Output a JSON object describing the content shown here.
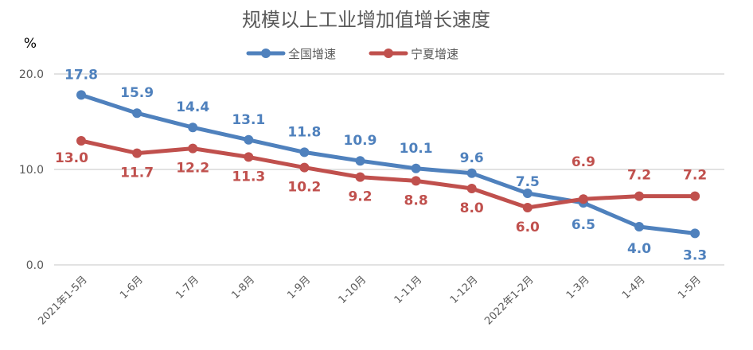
{
  "chart_data": {
    "type": "line",
    "title": "规模以上工业增加值增长速度",
    "ylabel": "%",
    "xlabel": "",
    "ylim": [
      0,
      20
    ],
    "yticks": [
      "0.0",
      "10.0",
      "20.0"
    ],
    "grid": true,
    "legend_position": "top-center",
    "categories": [
      "2021年1-5月",
      "1-6月",
      "1-7月",
      "1-8月",
      "1-9月",
      "1-10月",
      "1-11月",
      "1-12月",
      "2022年1-2月",
      "1-3月",
      "1-4月",
      "1-5月"
    ],
    "series": [
      {
        "name": "全国增速",
        "color": "#4f81bd",
        "values": [
          17.8,
          15.9,
          14.4,
          13.1,
          11.8,
          10.9,
          10.1,
          9.6,
          7.5,
          6.5,
          4.0,
          3.3
        ],
        "labels": [
          "17.8",
          "15.9",
          "14.4",
          "13.1",
          "11.8",
          "10.9",
          "10.1",
          "9.6",
          "7.5",
          "6.5",
          "4.0",
          "3.3"
        ]
      },
      {
        "name": "宁夏增速",
        "color": "#c0504d",
        "values": [
          13.0,
          11.7,
          12.2,
          11.3,
          10.2,
          9.2,
          8.8,
          8.0,
          6.0,
          6.9,
          7.2,
          7.2
        ],
        "labels": [
          "13.0",
          "11.7",
          "12.2",
          "11.3",
          "10.2",
          "9.2",
          "8.8",
          "8.0",
          "6.0",
          "6.9",
          "7.2",
          "7.2"
        ]
      }
    ]
  }
}
